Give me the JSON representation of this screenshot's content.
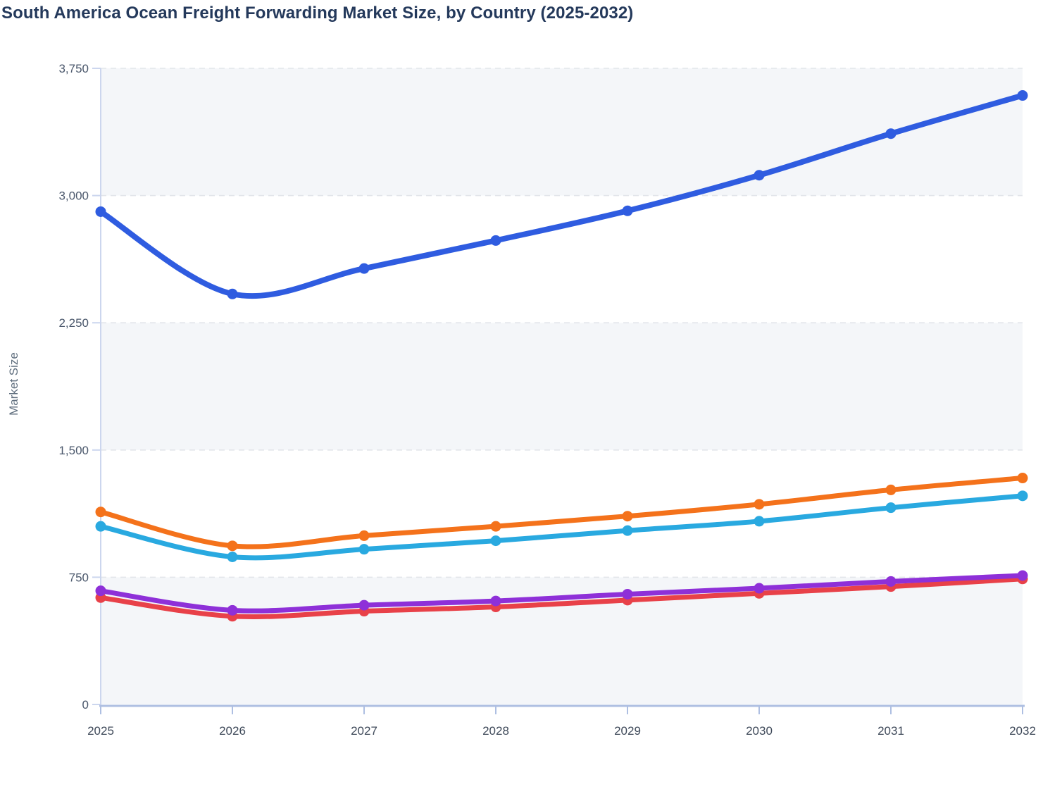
{
  "page": {
    "title": "South America Ocean Freight Forwarding Market Size, by Country (2025-2032)"
  },
  "chart_data": {
    "type": "line",
    "title": "South America Ocean Freight Forwarding Market Size, by Country (2025-2032)",
    "xlabel": "",
    "ylabel": "Market Size",
    "categories": [
      "2025",
      "2026",
      "2027",
      "2028",
      "2029",
      "2030",
      "2031",
      "2032"
    ],
    "series": [
      {
        "name": "blue",
        "color": "#2f5ce0",
        "values": [
          2905,
          2420,
          2570,
          2735,
          2910,
          3120,
          3365,
          3590
        ]
      },
      {
        "name": "orange",
        "color": "#f4721b",
        "values": [
          1135,
          935,
          995,
          1050,
          1110,
          1180,
          1265,
          1335
        ]
      },
      {
        "name": "cyan",
        "color": "#29a9e0",
        "values": [
          1050,
          870,
          915,
          965,
          1025,
          1080,
          1160,
          1230
        ]
      },
      {
        "name": "red",
        "color": "#e84149",
        "values": [
          630,
          520,
          550,
          575,
          615,
          655,
          695,
          740
        ]
      },
      {
        "name": "purple",
        "color": "#8e30d8",
        "values": [
          670,
          555,
          585,
          610,
          650,
          685,
          725,
          760
        ]
      }
    ],
    "ylim": [
      0,
      3750
    ],
    "y_ticks": [
      0,
      750,
      1500,
      2250,
      3000,
      3750
    ],
    "y_tick_labels": [
      "0",
      "750",
      "1,500",
      "2,250",
      "3,000",
      "3,750"
    ],
    "grid": "horizontal-dashed",
    "band_fill": "#f4f6f9",
    "gridline_color": "#e2e5ea",
    "axis_line_color": "#aebfe2",
    "tick_line_color": "#ccd6ee",
    "legend_position": "none",
    "smooth": true
  }
}
